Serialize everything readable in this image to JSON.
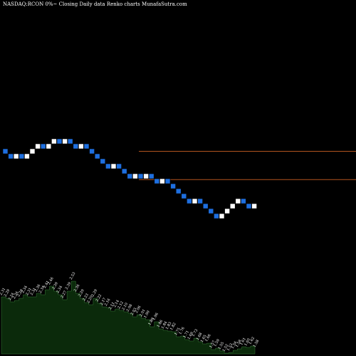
{
  "header": {
    "title": "NASDAQ:RCON  0%~   Closing  Daily data  Renko  charts MunafaSutra.com"
  },
  "chart_data": {
    "type": "renko",
    "title": "NASDAQ:RCON  0%~   Closing  Daily data  Renko  charts MunafaSutra.com",
    "colors": {
      "background": "#000000",
      "up_brick": "#ffffff",
      "down_brick": "#1e6fe0",
      "level_line": "#b3541e",
      "volume_fill": "#0b2a0b",
      "volume_line": "#3a7a3a",
      "label": "#ffffff"
    },
    "levels": [
      2.38,
      2.04
    ],
    "bricks": [
      {
        "close": 2.35,
        "dir": "down"
      },
      {
        "close": 2.29,
        "dir": "down"
      },
      {
        "close": 2.35,
        "dir": "up"
      },
      {
        "close": 2.29,
        "dir": "down"
      },
      {
        "close": 2.35,
        "dir": "up"
      },
      {
        "close": 2.41,
        "dir": "up"
      },
      {
        "close": 2.47,
        "dir": "up"
      },
      {
        "close": 2.41,
        "dir": "down"
      },
      {
        "close": 2.47,
        "dir": "up"
      },
      {
        "close": 2.53,
        "dir": "up"
      },
      {
        "close": 2.47,
        "dir": "down"
      },
      {
        "close": 2.53,
        "dir": "up"
      },
      {
        "close": 2.47,
        "dir": "down"
      },
      {
        "close": 2.41,
        "dir": "down"
      },
      {
        "close": 2.47,
        "dir": "up"
      },
      {
        "close": 2.41,
        "dir": "down"
      },
      {
        "close": 2.35,
        "dir": "down"
      },
      {
        "close": 2.29,
        "dir": "down"
      },
      {
        "close": 2.23,
        "dir": "down"
      },
      {
        "close": 2.17,
        "dir": "down"
      },
      {
        "close": 2.23,
        "dir": "up"
      },
      {
        "close": 2.17,
        "dir": "down"
      },
      {
        "close": 2.11,
        "dir": "down"
      },
      {
        "close": 2.05,
        "dir": "down"
      },
      {
        "close": 2.11,
        "dir": "up"
      },
      {
        "close": 2.05,
        "dir": "down"
      },
      {
        "close": 2.11,
        "dir": "up"
      },
      {
        "close": 2.05,
        "dir": "down"
      },
      {
        "close": 1.99,
        "dir": "down"
      },
      {
        "close": 2.05,
        "dir": "up"
      },
      {
        "close": 1.99,
        "dir": "down"
      },
      {
        "close": 1.93,
        "dir": "down"
      },
      {
        "close": 1.87,
        "dir": "down"
      },
      {
        "close": 1.81,
        "dir": "down"
      },
      {
        "close": 1.75,
        "dir": "down"
      },
      {
        "close": 1.81,
        "dir": "up"
      },
      {
        "close": 1.75,
        "dir": "down"
      },
      {
        "close": 1.69,
        "dir": "down"
      },
      {
        "close": 1.63,
        "dir": "down"
      },
      {
        "close": 1.57,
        "dir": "down"
      },
      {
        "close": 1.63,
        "dir": "up"
      },
      {
        "close": 1.69,
        "dir": "up"
      },
      {
        "close": 1.75,
        "dir": "up"
      },
      {
        "close": 1.81,
        "dir": "up"
      },
      {
        "close": 1.75,
        "dir": "down"
      },
      {
        "close": 1.69,
        "dir": "down"
      },
      {
        "close": 1.75,
        "dir": "up"
      }
    ],
    "price_labels": [
      "2.31",
      "2.29",
      "2.24",
      "2.26",
      "2.29",
      "2.34",
      "2.31",
      "2.31",
      "2.36",
      "2.34",
      "2.41",
      "2.46",
      "2.39",
      "2.34",
      "2.27",
      "2.39",
      "2.53",
      "2.36",
      "2.29",
      "2.23",
      "2.20",
      "2.29",
      "2.22",
      "2.17",
      "2.16",
      "2.11",
      "2.14",
      "2.12",
      "2.10",
      "2.08",
      "2.03",
      "2.06",
      "2.01",
      "1.99",
      "1.89",
      "1.96",
      "1.86",
      "1.84",
      "1.83",
      "1.82",
      "1.75",
      "1.76",
      "1.71",
      "1.69",
      "1.73",
      "1.68",
      "1.65",
      "1.66",
      "1.57",
      "1.59",
      "1.55",
      "1.52",
      "1.53",
      "1.56",
      "1.58",
      "1.61",
      "1.60",
      "1.62",
      "1.58"
    ]
  }
}
